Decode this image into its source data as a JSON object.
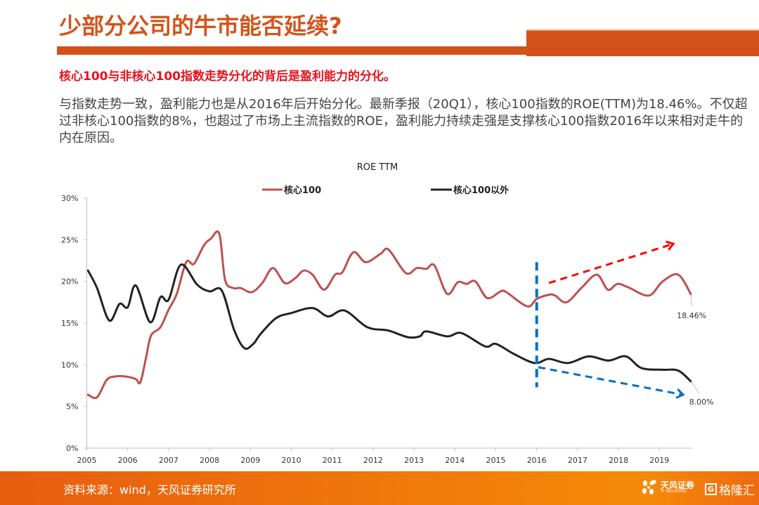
{
  "header": {
    "title": "少部分公司的牛市能否延续?",
    "subtitle": "核心100与非核心100指数走势分化的背后是盈利能力的分化。",
    "body": "与指数走势一致，盈利能力也是从2016年后开始分化。最新季报（20Q1），核心100指数的ROE(TTM)为18.46%。不仅超过非核心100指数的8%，也超过了市场上主流指数的ROE，盈利能力持续走强是支撑核心100指数2016年以来相对走牛的内在原因。"
  },
  "footer": {
    "source": "资料来源：wind，天风证券研究所",
    "logo1_name": "天风证券",
    "logo1_sub": "TF SECURITIES",
    "logo2_mark": "G",
    "logo2_name": "格隆汇"
  },
  "colors": {
    "brand": "#d4511a",
    "subtitle": "#e8121c",
    "core100": "#c0504d",
    "noncore": "#222222",
    "divider": "#0070c0",
    "up_arrow": "#ff0000",
    "down_arrow": "#0070c0"
  },
  "chart_data": {
    "type": "line",
    "title": "ROE TTM",
    "xlabel": "",
    "ylabel": "",
    "ylim": [
      0,
      30
    ],
    "xlim": [
      2005,
      2019.8
    ],
    "yticks": [
      "0%",
      "5%",
      "10%",
      "15%",
      "20%",
      "25%",
      "30%"
    ],
    "ytick_values": [
      0,
      5,
      10,
      15,
      20,
      25,
      30
    ],
    "xticks": [
      "2005",
      "2006",
      "2007",
      "2008",
      "2009",
      "2010",
      "2011",
      "2012",
      "2013",
      "2014",
      "2015",
      "2016",
      "2017",
      "2018",
      "2019"
    ],
    "grid": false,
    "legend_position": "top",
    "series": [
      {
        "name": "核心100",
        "color": "#c0504d",
        "points": [
          [
            2005.03,
            6.4
          ],
          [
            2005.25,
            6.1
          ],
          [
            2005.49,
            8.2
          ],
          [
            2005.71,
            8.6
          ],
          [
            2005.93,
            8.6
          ],
          [
            2006.19,
            8.3
          ],
          [
            2006.31,
            7.9
          ],
          [
            2006.45,
            10.9
          ],
          [
            2006.57,
            13.5
          ],
          [
            2006.8,
            14.5
          ],
          [
            2007.0,
            16.6
          ],
          [
            2007.2,
            18.5
          ],
          [
            2007.43,
            22.3
          ],
          [
            2007.62,
            22.1
          ],
          [
            2007.86,
            24.3
          ],
          [
            2008.03,
            25.1
          ],
          [
            2008.24,
            25.7
          ],
          [
            2008.38,
            20.2
          ],
          [
            2008.58,
            19.2
          ],
          [
            2008.76,
            19.2
          ],
          [
            2009.03,
            18.7
          ],
          [
            2009.29,
            19.8
          ],
          [
            2009.55,
            21.6
          ],
          [
            2009.84,
            19.8
          ],
          [
            2010.1,
            20.4
          ],
          [
            2010.3,
            21.3
          ],
          [
            2010.52,
            20.8
          ],
          [
            2010.8,
            19.0
          ],
          [
            2011.07,
            20.8
          ],
          [
            2011.25,
            21.1
          ],
          [
            2011.52,
            23.5
          ],
          [
            2011.82,
            22.3
          ],
          [
            2012.18,
            23.3
          ],
          [
            2012.38,
            23.8
          ],
          [
            2012.8,
            21.0
          ],
          [
            2013.07,
            21.6
          ],
          [
            2013.3,
            21.5
          ],
          [
            2013.5,
            21.9
          ],
          [
            2013.81,
            18.5
          ],
          [
            2014.07,
            19.9
          ],
          [
            2014.29,
            19.7
          ],
          [
            2014.5,
            20.0
          ],
          [
            2014.79,
            18.0
          ],
          [
            2015.12,
            18.8
          ],
          [
            2015.26,
            18.7
          ],
          [
            2015.77,
            17.0
          ],
          [
            2016.0,
            17.9
          ],
          [
            2016.3,
            18.4
          ],
          [
            2016.45,
            18.3
          ],
          [
            2016.73,
            17.5
          ],
          [
            2017.11,
            19.3
          ],
          [
            2017.47,
            20.8
          ],
          [
            2017.74,
            19.0
          ],
          [
            2017.97,
            19.7
          ],
          [
            2018.23,
            19.3
          ],
          [
            2018.74,
            18.3
          ],
          [
            2019.08,
            20.0
          ],
          [
            2019.46,
            20.8
          ],
          [
            2019.77,
            18.46
          ]
        ]
      },
      {
        "name": "核心100以外",
        "color": "#222222",
        "points": [
          [
            2005.03,
            21.3
          ],
          [
            2005.25,
            19.2
          ],
          [
            2005.55,
            15.3
          ],
          [
            2005.8,
            17.3
          ],
          [
            2006.0,
            16.9
          ],
          [
            2006.2,
            19.5
          ],
          [
            2006.55,
            15.1
          ],
          [
            2006.8,
            18.1
          ],
          [
            2007.0,
            17.8
          ],
          [
            2007.3,
            22.0
          ],
          [
            2007.7,
            19.6
          ],
          [
            2008.0,
            18.8
          ],
          [
            2008.3,
            18.9
          ],
          [
            2008.6,
            14.2
          ],
          [
            2008.85,
            12.0
          ],
          [
            2009.07,
            12.5
          ],
          [
            2009.25,
            13.7
          ],
          [
            2009.63,
            15.6
          ],
          [
            2010.0,
            16.2
          ],
          [
            2010.52,
            16.8
          ],
          [
            2010.9,
            15.8
          ],
          [
            2011.3,
            16.5
          ],
          [
            2011.86,
            14.5
          ],
          [
            2012.37,
            14.1
          ],
          [
            2012.85,
            13.3
          ],
          [
            2013.14,
            13.4
          ],
          [
            2013.3,
            14.0
          ],
          [
            2013.82,
            13.4
          ],
          [
            2014.16,
            13.8
          ],
          [
            2014.74,
            12.2
          ],
          [
            2015.0,
            12.5
          ],
          [
            2015.44,
            11.3
          ],
          [
            2015.95,
            10.2
          ],
          [
            2016.3,
            10.7
          ],
          [
            2016.76,
            10.2
          ],
          [
            2017.27,
            11.0
          ],
          [
            2017.75,
            10.5
          ],
          [
            2018.18,
            11.0
          ],
          [
            2018.56,
            9.6
          ],
          [
            2019.08,
            9.4
          ],
          [
            2019.46,
            9.3
          ],
          [
            2019.77,
            8.0
          ]
        ]
      }
    ],
    "annotations": [
      {
        "text": "18.46%",
        "series": "核心100",
        "value": 18.46
      },
      {
        "text": "8.00%",
        "series": "核心100以外",
        "value": 8.0
      },
      {
        "type": "vertical-dashed-line",
        "x": 2016,
        "y_range": [
          7.3,
          22.3
        ],
        "color": "#0070c0"
      },
      {
        "type": "dashed-arrow",
        "from": [
          2016.3,
          19.8
        ],
        "to": [
          2019.34,
          24.5
        ],
        "color": "#ff0000"
      },
      {
        "type": "dashed-arrow",
        "from": [
          2016.04,
          9.7
        ],
        "to": [
          2019.58,
          6.4
        ],
        "color": "#0070c0"
      }
    ]
  }
}
